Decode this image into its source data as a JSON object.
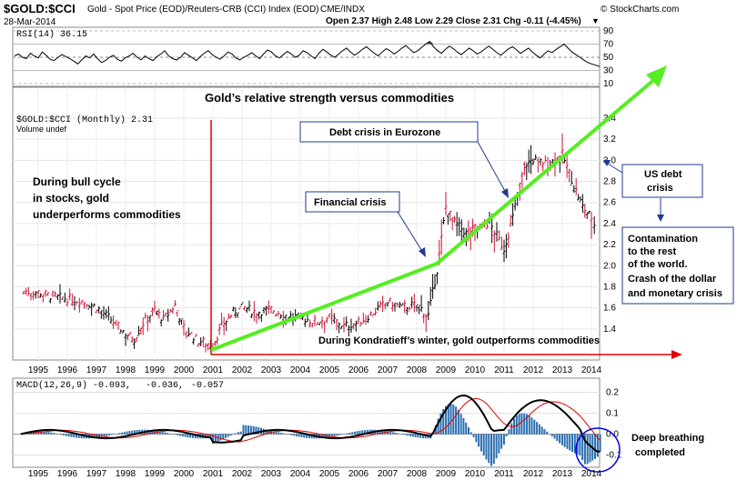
{
  "header": {
    "symbol": "$GOLD:$CCI",
    "description": "Gold - Spot Price (EOD)/Reuters-CRB (CCI) Index (EOD)",
    "exchange": "CME/INDX",
    "source": "© StockCharts.com",
    "date": "28-Mar-2014",
    "quote": "Open 2.37  High 2.48  Low 2.29  Close 2.31  Chg -0.11 (-4.45%)",
    "down_arrow": "▼"
  },
  "rsi": {
    "label": "RSI(14) 36.15",
    "ticks": [
      "90",
      "70",
      "50",
      "30",
      "10"
    ],
    "values": [
      52,
      55,
      50,
      48,
      56,
      52,
      49,
      58,
      53,
      47,
      45,
      50,
      54,
      51,
      48,
      44,
      40,
      46,
      52,
      49,
      55,
      48,
      42,
      45,
      50,
      53,
      47,
      44,
      49,
      52,
      56,
      50,
      46,
      52,
      48,
      45,
      51,
      55,
      60,
      52,
      48,
      46,
      50,
      57,
      53,
      49,
      45,
      51,
      56,
      60,
      54,
      50,
      47,
      52,
      58,
      55,
      49,
      46,
      50,
      53,
      57,
      52,
      48,
      55,
      61,
      58,
      52,
      49,
      54,
      59,
      55,
      50,
      53,
      60,
      57,
      52,
      48,
      56,
      62,
      58,
      53,
      50,
      55,
      60,
      64,
      58,
      53,
      57,
      62,
      66,
      61,
      56,
      52,
      58,
      63,
      60,
      55,
      59,
      64,
      68,
      62,
      57,
      60,
      65,
      70,
      74,
      66,
      60,
      56,
      62,
      67,
      63,
      58,
      54,
      59,
      64,
      60,
      55,
      58,
      63,
      67,
      62,
      57,
      53,
      58,
      63,
      66,
      61,
      56,
      60,
      64,
      58,
      53,
      49,
      55,
      60,
      57,
      62,
      66,
      70,
      64,
      58,
      54,
      50,
      46,
      42,
      40,
      38,
      36
    ]
  },
  "price_panel": {
    "legend": "$GOLD:$CCI (Monthly) 2.31",
    "volume": "Volume undef",
    "title": "Gold’s relative strength versus commodities"
  },
  "annotations": {
    "bull_cycle": [
      "During bull cycle",
      "in stocks, gold",
      "underperforms commodities"
    ],
    "kondratieff": "During Kondratieff’s winter, gold outperforms commodities",
    "financial_crisis": "Financial crisis",
    "debt_crisis": "Debt crisis in Eurozone",
    "us_debt": [
      "US debt",
      "crisis"
    ],
    "contamination": [
      "Contamination",
      "to the rest",
      "of the world.",
      "Crash of the dollar",
      "and monetary crisis"
    ],
    "deep_breathing": [
      "Deep breathing",
      "completed"
    ]
  },
  "macd": {
    "label_main": "MACD(12,26,9) -0.093,",
    "label_signal": "-0.036,",
    "label_hist": "-0.057",
    "ticks": [
      "0.2",
      "0.1",
      "0.0",
      "-0.1"
    ]
  },
  "colors": {
    "blue_text": "#1f3b8f",
    "green_arrow": "#55ee22",
    "red_line": "#e00000",
    "macd_signal": "#e00000",
    "hist": "#2b6fb0",
    "rsi_fill": "#1a7a2a"
  },
  "chart_data": {
    "type": "bar",
    "title": "Gold’s relative strength versus commodities",
    "x_axis_years": [
      "1995",
      "1996",
      "1997",
      "1998",
      "1999",
      "2000",
      "2001",
      "2002",
      "2003",
      "2004",
      "2005",
      "2006",
      "2007",
      "2008",
      "2009",
      "2010",
      "2011",
      "2012",
      "2013",
      "2014"
    ],
    "price_ticks": [
      "3.4",
      "3.2",
      "3.0",
      "2.8",
      "2.6",
      "2.4",
      "2.2",
      "2.0",
      "1.8",
      "1.6",
      "1.4"
    ],
    "ylim": [
      1.2,
      3.4
    ],
    "series": [
      {
        "type": "ohlc",
        "values": [
          {
            "x": 1994.5,
            "v": 1.75
          },
          {
            "x": 1995.0,
            "v": 1.74
          },
          {
            "x": 1995.5,
            "v": 1.7
          },
          {
            "x": 1996.0,
            "v": 1.68
          },
          {
            "x": 1996.5,
            "v": 1.66
          },
          {
            "x": 1997.0,
            "v": 1.6
          },
          {
            "x": 1997.5,
            "v": 1.48
          },
          {
            "x": 1998.0,
            "v": 1.35
          },
          {
            "x": 1998.3,
            "v": 1.3
          },
          {
            "x": 1998.6,
            "v": 1.45
          },
          {
            "x": 1999.0,
            "v": 1.58
          },
          {
            "x": 1999.3,
            "v": 1.48
          },
          {
            "x": 1999.7,
            "v": 1.62
          },
          {
            "x": 2000.0,
            "v": 1.4
          },
          {
            "x": 2000.5,
            "v": 1.28
          },
          {
            "x": 2001.0,
            "v": 1.24
          },
          {
            "x": 2001.3,
            "v": 1.42
          },
          {
            "x": 2001.7,
            "v": 1.55
          },
          {
            "x": 2002.0,
            "v": 1.6
          },
          {
            "x": 2002.5,
            "v": 1.55
          },
          {
            "x": 2003.0,
            "v": 1.58
          },
          {
            "x": 2003.5,
            "v": 1.52
          },
          {
            "x": 2004.0,
            "v": 1.5
          },
          {
            "x": 2004.5,
            "v": 1.46
          },
          {
            "x": 2005.0,
            "v": 1.5
          },
          {
            "x": 2005.5,
            "v": 1.42
          },
          {
            "x": 2006.0,
            "v": 1.45
          },
          {
            "x": 2006.5,
            "v": 1.55
          },
          {
            "x": 2007.0,
            "v": 1.65
          },
          {
            "x": 2007.5,
            "v": 1.6
          },
          {
            "x": 2008.0,
            "v": 1.62
          },
          {
            "x": 2008.4,
            "v": 1.52
          },
          {
            "x": 2008.7,
            "v": 1.95
          },
          {
            "x": 2009.0,
            "v": 2.55
          },
          {
            "x": 2009.3,
            "v": 2.4
          },
          {
            "x": 2009.7,
            "v": 2.3
          },
          {
            "x": 2010.0,
            "v": 2.35
          },
          {
            "x": 2010.5,
            "v": 2.4
          },
          {
            "x": 2011.0,
            "v": 2.15
          },
          {
            "x": 2011.3,
            "v": 2.45
          },
          {
            "x": 2011.7,
            "v": 2.95
          },
          {
            "x": 2012.0,
            "v": 3.0
          },
          {
            "x": 2012.5,
            "v": 2.95
          },
          {
            "x": 2013.0,
            "v": 3.05
          },
          {
            "x": 2013.4,
            "v": 2.75
          },
          {
            "x": 2013.7,
            "v": 2.55
          },
          {
            "x": 2014.0,
            "v": 2.45
          },
          {
            "x": 2014.2,
            "v": 2.31
          }
        ]
      }
    ],
    "macd_ylim": [
      -0.15,
      0.25
    ]
  }
}
